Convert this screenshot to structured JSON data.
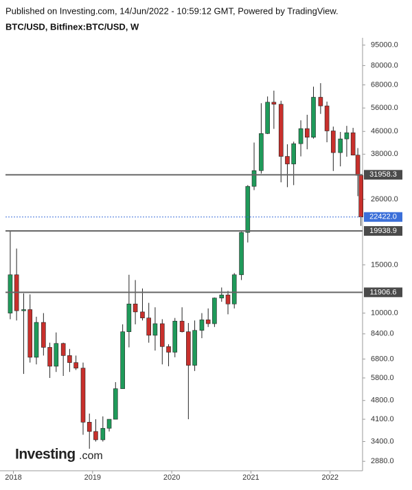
{
  "chart_data": {
    "type": "candlestick",
    "header": "Published on Investing.com, 14/Jun/2022 - 10:59:12 GMT, Powered by TradingView.",
    "title": "BTC/USD, Bitfinex:BTC/USD, W",
    "logo_main": "Investing",
    "logo_suffix": ".com",
    "log_scale": true,
    "up_color": "#1f9a5a",
    "down_color": "#c8302c",
    "level_color": "#666666",
    "last_price_color": "#3b6fd9",
    "xlim": [
      2017.9,
      2022.41
    ],
    "xticks": [
      2018,
      2019,
      2020,
      2021,
      2022
    ],
    "ylim": [
      2660,
      101000
    ],
    "yticks": [
      {
        "value": 2880,
        "label": "2880.0"
      },
      {
        "value": 3400,
        "label": "3400.0"
      },
      {
        "value": 4100,
        "label": "4100.0"
      },
      {
        "value": 4800,
        "label": "4800.0"
      },
      {
        "value": 5800,
        "label": "5800.0"
      },
      {
        "value": 6800,
        "label": "6800.0"
      },
      {
        "value": 8400,
        "label": "8400.0"
      },
      {
        "value": 10000,
        "label": "10000.0"
      },
      {
        "value": 15000,
        "label": "15000.0"
      },
      {
        "value": 26000,
        "label": "26000.0"
      },
      {
        "value": 38000,
        "label": "38000.0"
      },
      {
        "value": 46000,
        "label": "46000.0"
      },
      {
        "value": 56000,
        "label": "56000.0"
      },
      {
        "value": 68000,
        "label": "68000.0"
      },
      {
        "value": 80000,
        "label": "80000.0"
      },
      {
        "value": 95000,
        "label": "95000.0"
      }
    ],
    "levels": [
      31958.3,
      19938.9,
      11906.6
    ],
    "last_price": {
      "value": 22422,
      "label": "22422.0"
    },
    "x": [
      2017.96,
      2018.04,
      2018.13,
      2018.21,
      2018.29,
      2018.38,
      2018.46,
      2018.54,
      2018.63,
      2018.71,
      2018.79,
      2018.88,
      2018.96,
      2019.04,
      2019.13,
      2019.21,
      2019.29,
      2019.38,
      2019.46,
      2019.54,
      2019.63,
      2019.71,
      2019.79,
      2019.88,
      2019.96,
      2020.04,
      2020.13,
      2020.21,
      2020.29,
      2020.38,
      2020.46,
      2020.54,
      2020.63,
      2020.71,
      2020.79,
      2020.88,
      2020.96,
      2021.04,
      2021.13,
      2021.21,
      2021.29,
      2021.38,
      2021.46,
      2021.54,
      2021.63,
      2021.71,
      2021.79,
      2021.88,
      2021.96,
      2022.04,
      2022.13,
      2022.21,
      2022.29,
      2022.35,
      2022.39
    ],
    "open": [
      10000,
      13800,
      10200,
      10300,
      6900,
      9250,
      7500,
      6400,
      7750,
      7000,
      6600,
      6300,
      4000,
      3700,
      3450,
      3800,
      4100,
      5300,
      8550,
      10800,
      10100,
      9600,
      8300,
      9150,
      7550,
      7200,
      9350,
      8550,
      6450,
      8650,
      9450,
      9150,
      11350,
      11650,
      10800,
      13800,
      19700,
      29000,
      33100,
      45200,
      58800,
      57800,
      37300,
      35000,
      41500,
      47100,
      43800,
      61300,
      57000,
      46200,
      38500,
      43200,
      45500,
      37700,
      31800
    ],
    "high": [
      19900,
      17200,
      11800,
      11700,
      9700,
      10000,
      7800,
      8500,
      7800,
      7400,
      7000,
      6600,
      4300,
      4100,
      4200,
      4100,
      5600,
      9100,
      13800,
      13200,
      12300,
      10900,
      10500,
      9500,
      7700,
      9600,
      10500,
      9200,
      9400,
      10000,
      10400,
      11400,
      12400,
      12050,
      14000,
      19800,
      29300,
      41900,
      58300,
      61700,
      64800,
      59500,
      41300,
      42200,
      50500,
      52900,
      67000,
      69000,
      59100,
      47900,
      45800,
      48200,
      47400,
      40000,
      31900
    ],
    "low": [
      9500,
      9400,
      6000,
      6600,
      6500,
      7000,
      5800,
      6100,
      5900,
      6100,
      6200,
      3600,
      3200,
      3400,
      3400,
      3700,
      4100,
      5300,
      7500,
      9100,
      9400,
      7800,
      7300,
      6500,
      6400,
      6900,
      8500,
      4100,
      6150,
      8100,
      8900,
      8900,
      11000,
      9900,
      10400,
      13200,
      18100,
      28100,
      32300,
      45000,
      47000,
      30000,
      28800,
      29300,
      37300,
      39600,
      43300,
      53300,
      42000,
      33000,
      34300,
      37200,
      37600,
      26700,
      20800
    ],
    "close": [
      13800,
      10200,
      10300,
      6900,
      9250,
      7500,
      6400,
      7750,
      7000,
      6600,
      6300,
      4000,
      3700,
      3450,
      3800,
      4100,
      5300,
      8550,
      10800,
      10100,
      9600,
      8300,
      9150,
      7550,
      7200,
      9350,
      8550,
      6450,
      8650,
      9450,
      9150,
      11350,
      11650,
      10800,
      13800,
      19700,
      29000,
      33100,
      45200,
      58800,
      57800,
      37300,
      35000,
      41500,
      47100,
      43800,
      61300,
      57000,
      46200,
      38500,
      43200,
      45500,
      37700,
      31800,
      22422
    ]
  }
}
